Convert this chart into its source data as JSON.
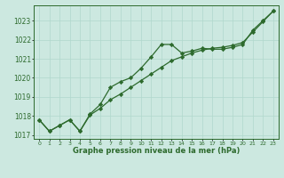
{
  "hours": [
    0,
    1,
    2,
    3,
    4,
    5,
    6,
    7,
    8,
    9,
    10,
    11,
    12,
    13,
    14,
    15,
    16,
    17,
    18,
    19,
    20,
    21,
    22,
    23
  ],
  "line1_wavy": [
    1017.8,
    1017.2,
    1017.5,
    1017.8,
    1017.2,
    1018.1,
    1018.6,
    1019.5,
    1019.8,
    1020.0,
    1020.5,
    1021.1,
    1021.75,
    1021.75,
    1021.3,
    1021.4,
    1021.55,
    1021.5,
    1021.5,
    1021.6,
    1021.75,
    1022.5,
    1023.0,
    1023.5
  ],
  "line2_straight": [
    1017.8,
    1017.2,
    1017.5,
    1017.8,
    1017.2,
    1018.05,
    1018.4,
    1018.85,
    1019.15,
    1019.5,
    1019.85,
    1020.2,
    1020.55,
    1020.9,
    1021.1,
    1021.3,
    1021.45,
    1021.55,
    1021.6,
    1021.7,
    1021.85,
    1022.4,
    1022.95,
    1023.5
  ],
  "line_color": "#2d6a2d",
  "bg_color": "#cce8e0",
  "grid_color": "#b0d8cc",
  "xlabel": "Graphe pression niveau de la mer (hPa)",
  "ylim_min": 1016.8,
  "ylim_max": 1023.8,
  "yticks": [
    1017,
    1018,
    1019,
    1020,
    1021,
    1022,
    1023
  ],
  "marker": "D",
  "markersize": 2.2,
  "linewidth": 0.9
}
